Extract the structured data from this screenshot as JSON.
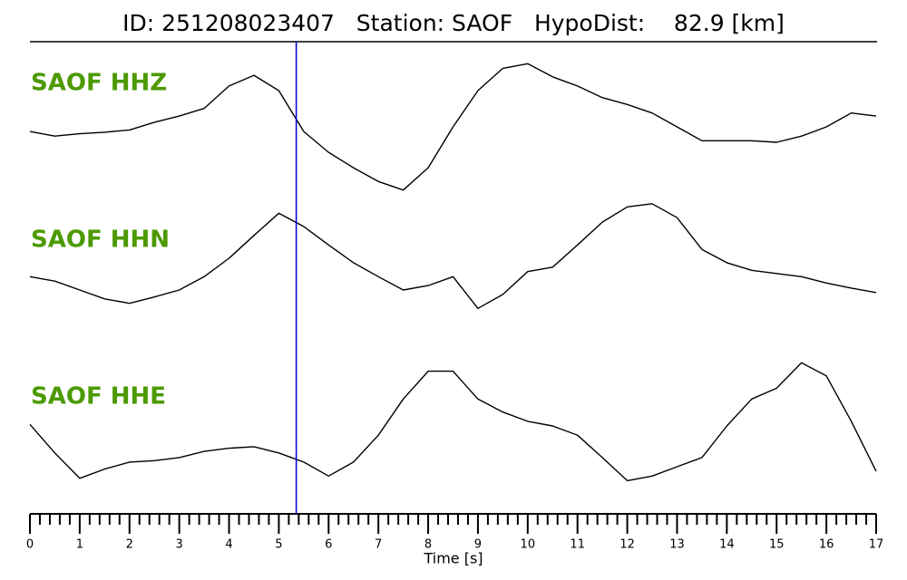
{
  "chart_data": {
    "type": "line",
    "title": "ID: 251208023407   Station: SAOF   HypoDist:    82.9 [km]",
    "xlabel": "Time [s]",
    "x": [
      0,
      0.5,
      1,
      1.5,
      2,
      2.5,
      3,
      3.5,
      4,
      4.5,
      5,
      5.5,
      6,
      6.5,
      7,
      7.5,
      8,
      8.5,
      9,
      9.5,
      10,
      10.5,
      11,
      11.5,
      12,
      12.5,
      13,
      13.5,
      14,
      14.5,
      15,
      15.5,
      16,
      16.5,
      17
    ],
    "xlim": [
      0,
      17
    ],
    "xticks": [
      0,
      1,
      2,
      3,
      4,
      5,
      6,
      7,
      8,
      9,
      10,
      11,
      12,
      13,
      14,
      15,
      16,
      17
    ],
    "xminor_step": 0.2,
    "label_color": "#4c9a00",
    "markers": [
      {
        "x": 5.35,
        "color": "#0000cc"
      }
    ],
    "series": [
      {
        "name": "SAOF HHZ",
        "color": "#000000",
        "ylim": [
          -1,
          1
        ],
        "values": [
          -0.06,
          -0.12,
          -0.09,
          -0.07,
          -0.04,
          0.06,
          0.14,
          0.24,
          0.53,
          0.67,
          0.47,
          -0.06,
          -0.33,
          -0.53,
          -0.71,
          -0.82,
          -0.53,
          0,
          0.47,
          0.76,
          0.82,
          0.65,
          0.53,
          0.38,
          0.29,
          0.18,
          0,
          -0.18,
          -0.18,
          -0.18,
          -0.2,
          -0.12,
          0,
          0.18,
          0.14
        ]
      },
      {
        "name": "SAOF HHN",
        "color": "#000000",
        "ylim": [
          -1,
          1
        ],
        "values": [
          -0.29,
          -0.36,
          -0.5,
          -0.64,
          -0.71,
          -0.61,
          -0.5,
          -0.29,
          0,
          0.36,
          0.71,
          0.5,
          0.21,
          -0.07,
          -0.29,
          -0.5,
          -0.43,
          -0.29,
          -0.79,
          -0.57,
          -0.21,
          -0.14,
          0.21,
          0.57,
          0.81,
          0.86,
          0.64,
          0.14,
          -0.07,
          -0.19,
          -0.24,
          -0.29,
          -0.39,
          -0.47,
          -0.54
        ]
      },
      {
        "name": "SAOF HHE",
        "color": "#000000",
        "ylim": [
          -1,
          1
        ],
        "values": [
          0.02,
          -0.35,
          -0.68,
          -0.56,
          -0.47,
          -0.45,
          -0.41,
          -0.33,
          -0.29,
          -0.27,
          -0.35,
          -0.47,
          -0.65,
          -0.47,
          -0.12,
          0.35,
          0.71,
          0.71,
          0.35,
          0.18,
          0.06,
          0,
          -0.12,
          -0.41,
          -0.71,
          -0.65,
          -0.53,
          -0.41,
          0,
          0.35,
          0.49,
          0.82,
          0.65,
          0.06,
          -0.59
        ]
      }
    ]
  }
}
